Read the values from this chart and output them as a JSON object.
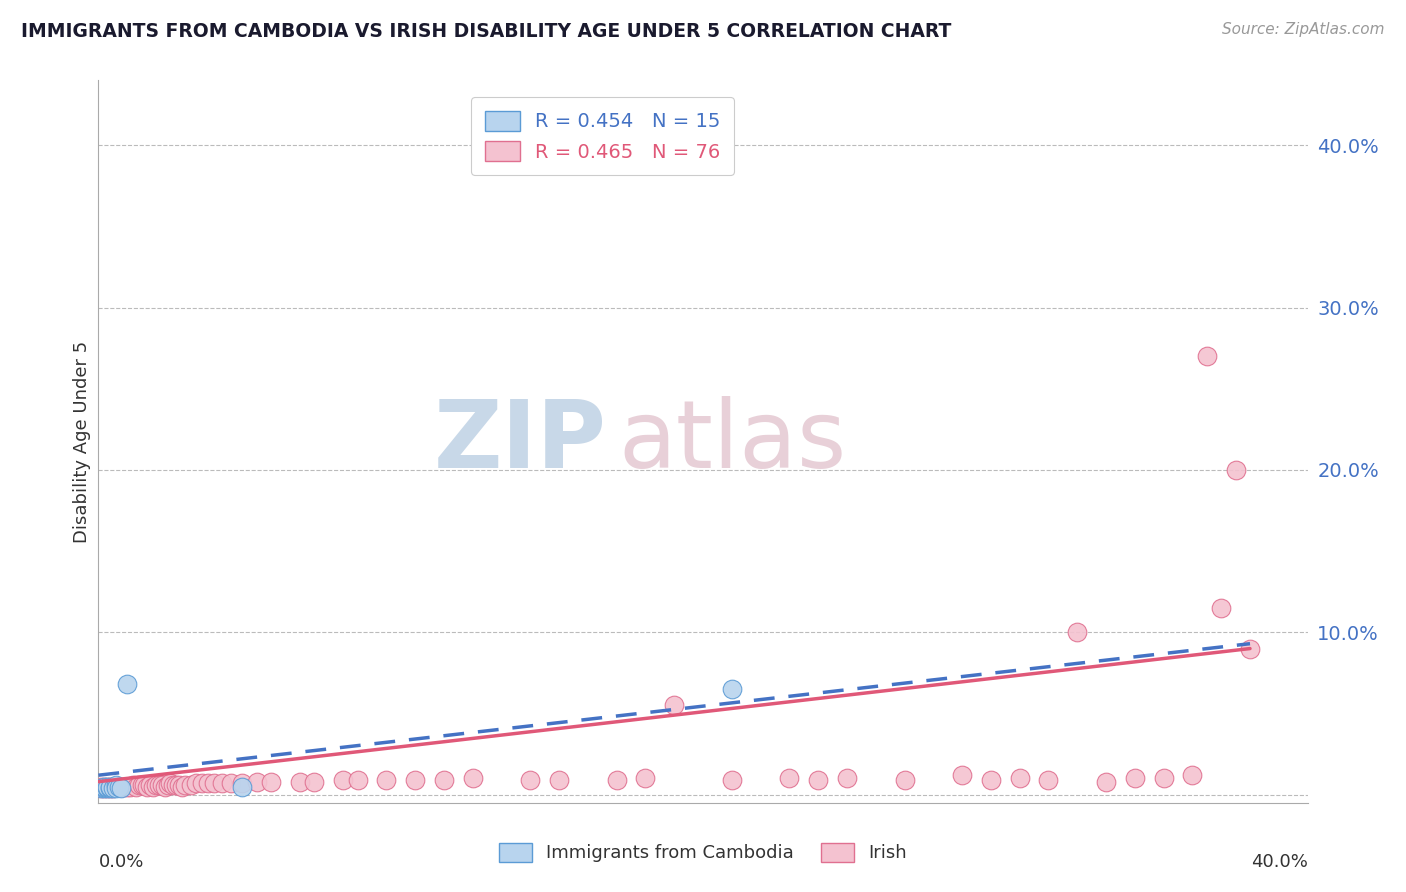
{
  "title": "IMMIGRANTS FROM CAMBODIA VS IRISH DISABILITY AGE UNDER 5 CORRELATION CHART",
  "source": "Source: ZipAtlas.com",
  "ylabel": "Disability Age Under 5",
  "xlim": [
    0.0,
    0.42
  ],
  "ylim": [
    -0.005,
    0.44
  ],
  "ytick_vals": [
    0.0,
    0.1,
    0.2,
    0.3,
    0.4
  ],
  "ytick_labels": [
    "",
    "10.0%",
    "20.0%",
    "30.0%",
    "40.0%"
  ],
  "legend_cambodia": "R = 0.454   N = 15",
  "legend_irish": "R = 0.465   N = 76",
  "cambodia_fill_color": "#b8d4ee",
  "cambodia_edge_color": "#5b9bd5",
  "irish_fill_color": "#f4c2d0",
  "irish_edge_color": "#e07090",
  "blue_line_color": "#4472c4",
  "pink_line_color": "#e05878",
  "watermark_zip_color": "#c8d8e8",
  "watermark_atlas_color": "#e8d0d8",
  "cambodia_regression": [
    0.001,
    0.093
  ],
  "irish_regression": [
    0.001,
    0.09
  ],
  "cambodia_scatter_x": [
    0.001,
    0.002,
    0.002,
    0.003,
    0.003,
    0.004,
    0.004,
    0.005,
    0.006,
    0.006,
    0.007,
    0.008,
    0.01,
    0.05,
    0.22
  ],
  "cambodia_scatter_y": [
    0.004,
    0.004,
    0.005,
    0.004,
    0.005,
    0.004,
    0.005,
    0.004,
    0.006,
    0.004,
    0.005,
    0.004,
    0.068,
    0.005,
    0.065
  ],
  "irish_scatter_x": [
    0.001,
    0.001,
    0.002,
    0.002,
    0.003,
    0.003,
    0.004,
    0.004,
    0.005,
    0.005,
    0.006,
    0.007,
    0.008,
    0.009,
    0.01,
    0.011,
    0.012,
    0.013,
    0.014,
    0.015,
    0.016,
    0.017,
    0.018,
    0.019,
    0.02,
    0.021,
    0.022,
    0.023,
    0.024,
    0.025,
    0.026,
    0.027,
    0.028,
    0.029,
    0.03,
    0.032,
    0.034,
    0.036,
    0.038,
    0.04,
    0.043,
    0.046,
    0.05,
    0.055,
    0.06,
    0.07,
    0.075,
    0.085,
    0.09,
    0.1,
    0.11,
    0.12,
    0.13,
    0.15,
    0.16,
    0.18,
    0.19,
    0.2,
    0.22,
    0.24,
    0.25,
    0.26,
    0.28,
    0.3,
    0.31,
    0.32,
    0.33,
    0.34,
    0.35,
    0.36,
    0.37,
    0.38,
    0.39,
    0.4,
    0.395,
    0.385
  ],
  "irish_scatter_y": [
    0.004,
    0.005,
    0.004,
    0.005,
    0.004,
    0.005,
    0.004,
    0.005,
    0.004,
    0.005,
    0.005,
    0.005,
    0.005,
    0.005,
    0.005,
    0.005,
    0.006,
    0.005,
    0.006,
    0.006,
    0.006,
    0.005,
    0.006,
    0.005,
    0.006,
    0.006,
    0.006,
    0.005,
    0.006,
    0.007,
    0.006,
    0.006,
    0.006,
    0.005,
    0.006,
    0.006,
    0.007,
    0.007,
    0.007,
    0.007,
    0.007,
    0.007,
    0.007,
    0.008,
    0.008,
    0.008,
    0.008,
    0.009,
    0.009,
    0.009,
    0.009,
    0.009,
    0.01,
    0.009,
    0.009,
    0.009,
    0.01,
    0.055,
    0.009,
    0.01,
    0.009,
    0.01,
    0.009,
    0.012,
    0.009,
    0.01,
    0.009,
    0.1,
    0.008,
    0.01,
    0.01,
    0.012,
    0.115,
    0.09,
    0.2,
    0.27
  ]
}
